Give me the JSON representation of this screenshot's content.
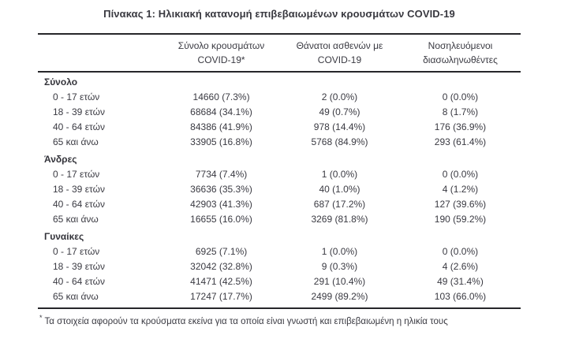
{
  "page": {
    "title": "Πίνακας 1: Ηλικιακή κατανομή επιβεβαιωμένων κρουσμάτων COVID-19",
    "footnote": {
      "marker": "*",
      "text": "Τα στοιχεία αφορούν τα κρούσματα εκείνα για τα οποία είναι γνωστή και επιβεβαιωμένη η ηλικία τους"
    }
  },
  "colors": {
    "background": "#ffffff",
    "text": "#3a3a42",
    "rule": "#26262a"
  },
  "table": {
    "columns": [
      {
        "line1": "",
        "line2": ""
      },
      {
        "line1": "Σύνολο κρουσμάτων",
        "line2": "COVID-19*"
      },
      {
        "line1": "Θάνατοι ασθενών με",
        "line2": "COVID-19"
      },
      {
        "line1": "Νοσηλευόμενοι",
        "line2": "διασωληνωθέντες"
      }
    ],
    "sections": [
      {
        "header": "Σύνολο",
        "rows": [
          {
            "label": "0 - 17 ετών",
            "cases": "14660 (7.3%)",
            "deaths": "2 (0.0%)",
            "intubated": "0 (0.0%)"
          },
          {
            "label": "18 - 39 ετών",
            "cases": "68684 (34.1%)",
            "deaths": "49 (0.7%)",
            "intubated": "8 (1.7%)"
          },
          {
            "label": "40 - 64 ετών",
            "cases": "84386 (41.9%)",
            "deaths": "978 (14.4%)",
            "intubated": "176 (36.9%)"
          },
          {
            "label": "65 και άνω",
            "cases": "33905 (16.8%)",
            "deaths": "5768 (84.9%)",
            "intubated": "293 (61.4%)"
          }
        ]
      },
      {
        "header": "Άνδρες",
        "rows": [
          {
            "label": "0 - 17 ετών",
            "cases": "7734 (7.4%)",
            "deaths": "1 (0.0%)",
            "intubated": "0 (0.0%)"
          },
          {
            "label": "18 - 39 ετών",
            "cases": "36636 (35.3%)",
            "deaths": "40 (1.0%)",
            "intubated": "4 (1.2%)"
          },
          {
            "label": "40 - 64 ετών",
            "cases": "42903 (41.3%)",
            "deaths": "687 (17.2%)",
            "intubated": "127 (39.6%)"
          },
          {
            "label": "65 και άνω",
            "cases": "16655 (16.0%)",
            "deaths": "3269 (81.8%)",
            "intubated": "190 (59.2%)"
          }
        ]
      },
      {
        "header": "Γυναίκες",
        "rows": [
          {
            "label": "0 - 17 ετών",
            "cases": "6925 (7.1%)",
            "deaths": "1 (0.0%)",
            "intubated": "0 (0.0%)"
          },
          {
            "label": "18 - 39 ετών",
            "cases": "32042 (32.8%)",
            "deaths": "9 (0.3%)",
            "intubated": "4 (2.6%)"
          },
          {
            "label": "40 - 64 ετών",
            "cases": "41471 (42.5%)",
            "deaths": "291 (10.4%)",
            "intubated": "49 (31.4%)"
          },
          {
            "label": "65 και άνω",
            "cases": "17247 (17.7%)",
            "deaths": "2499 (89.2%)",
            "intubated": "103 (66.0%)"
          }
        ]
      }
    ]
  }
}
